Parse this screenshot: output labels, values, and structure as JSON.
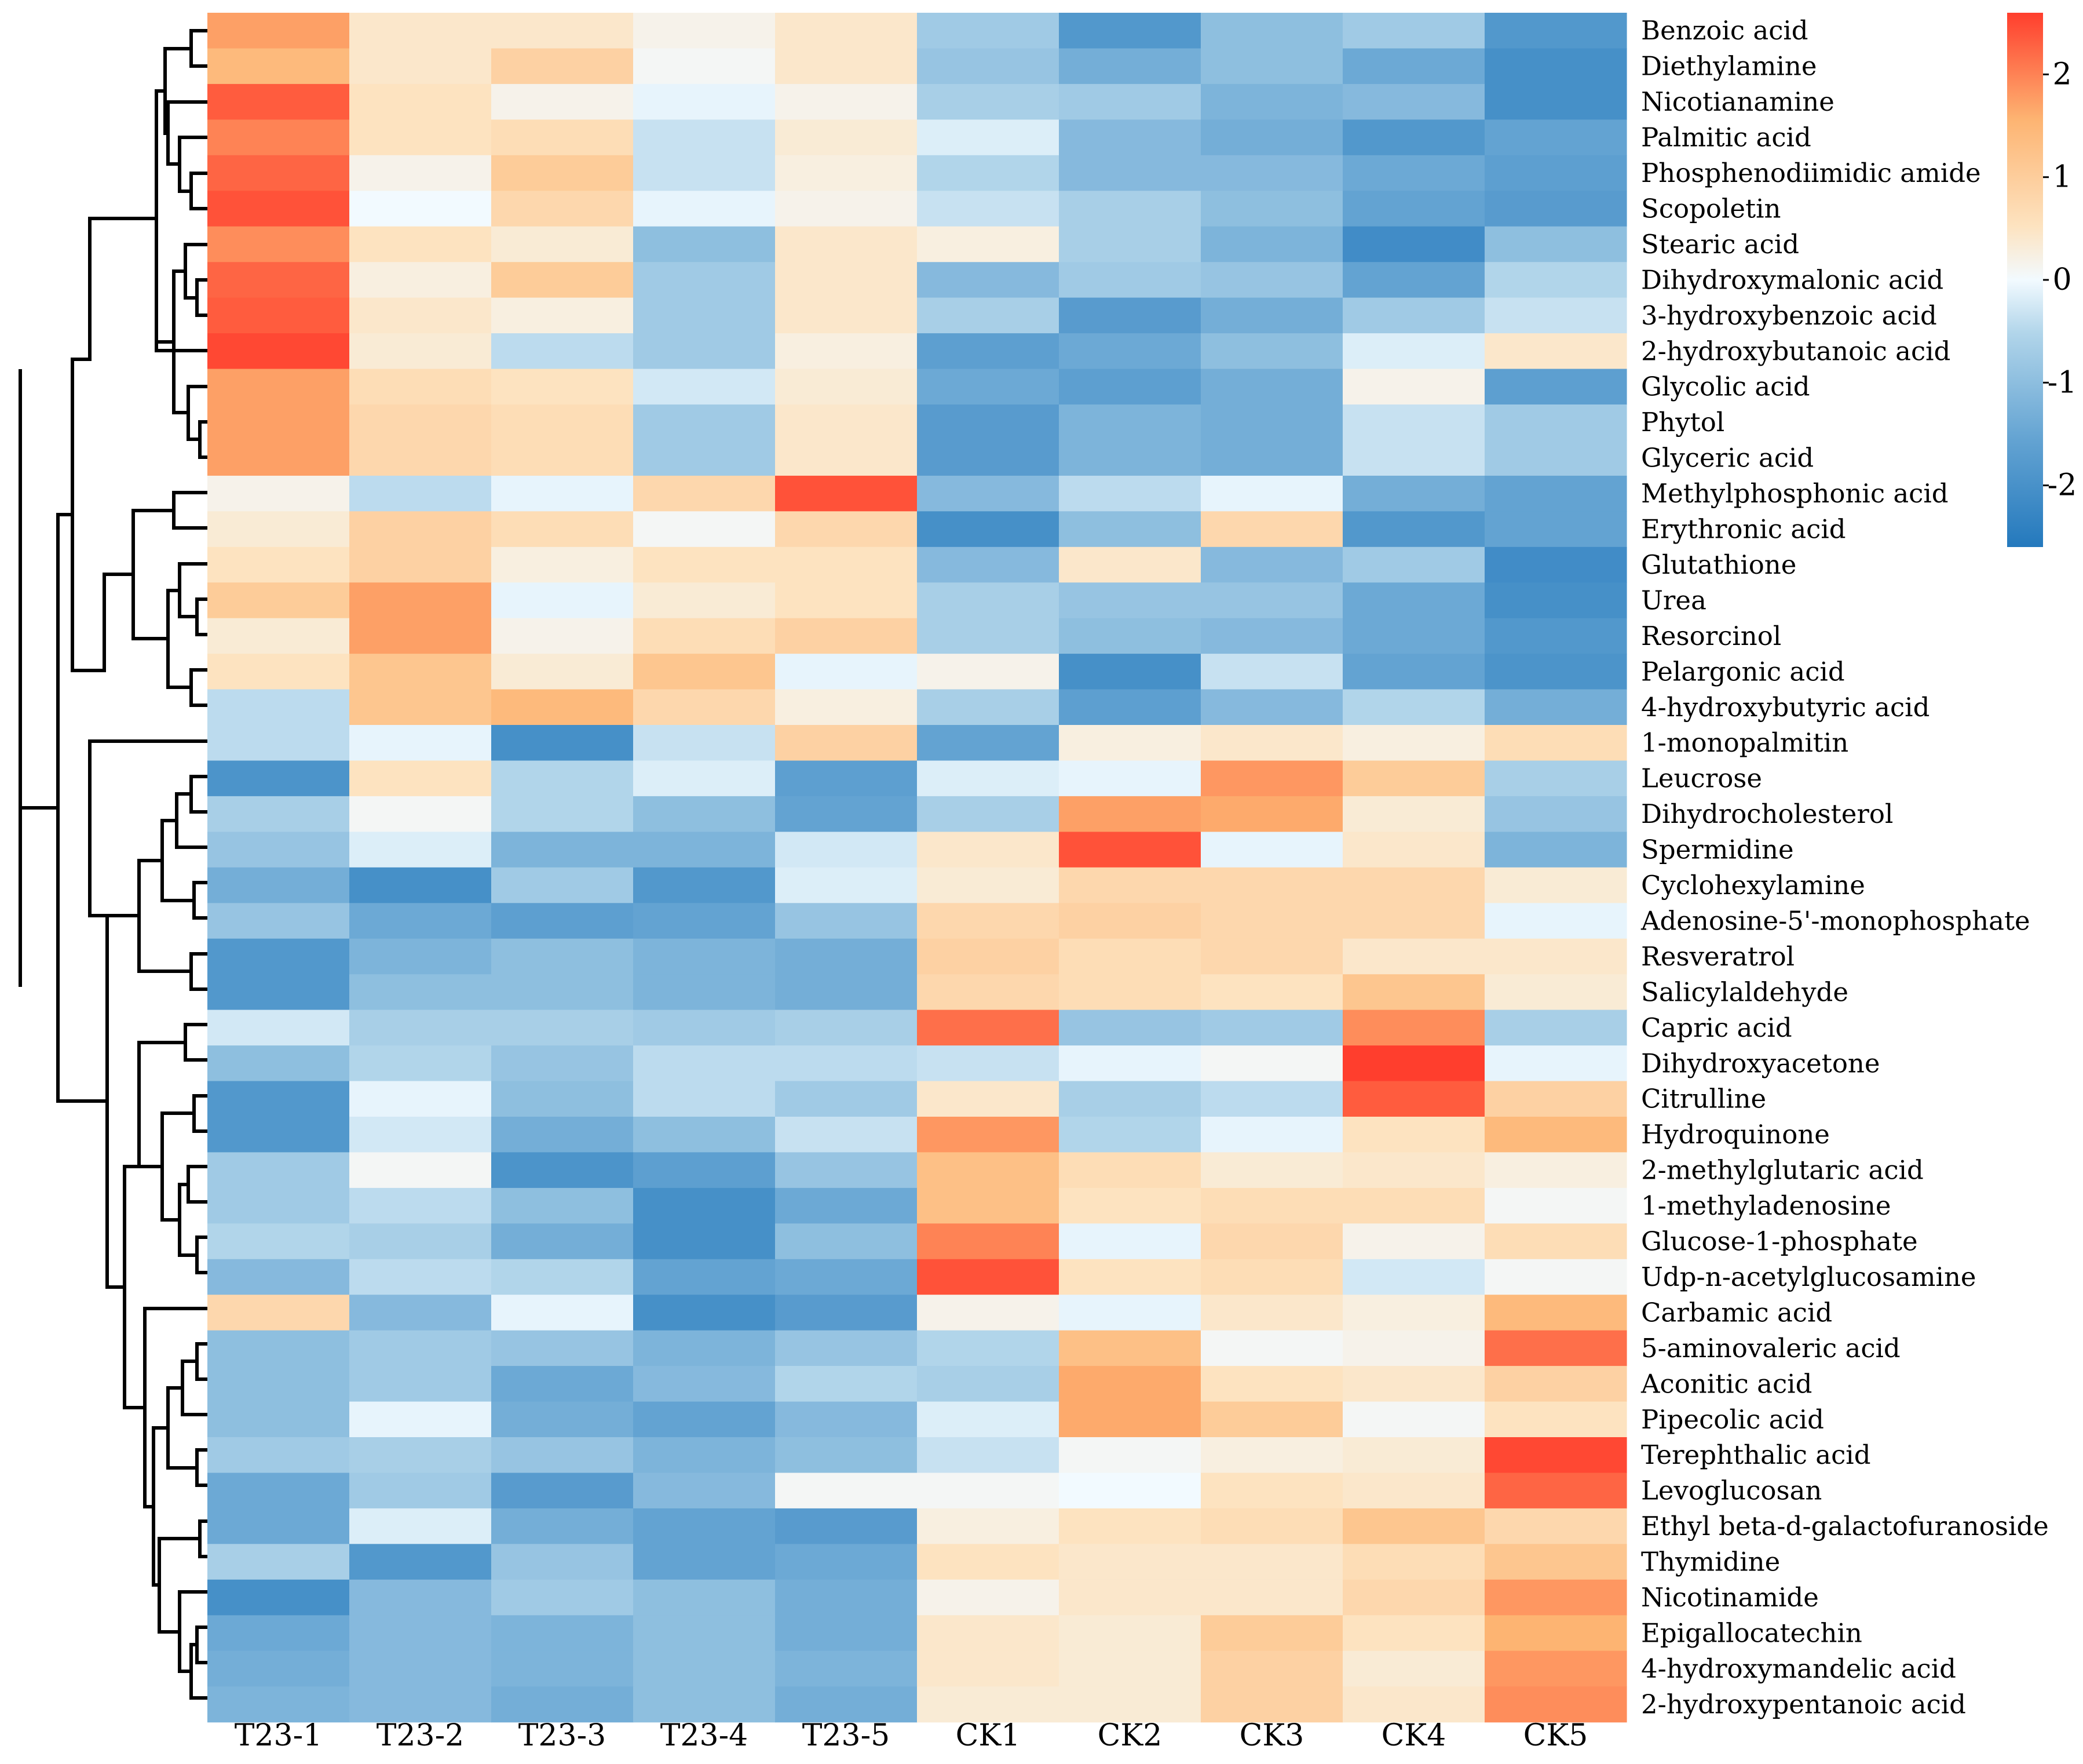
{
  "chart_data": {
    "type": "heatmap",
    "columns": [
      "T23-1",
      "T23-2",
      "T23-3",
      "T23-4",
      "T23-5",
      "CK1",
      "CK2",
      "CK3",
      "CK4",
      "CK5"
    ],
    "rows": [
      "Benzoic acid",
      "Diethylamine",
      "Nicotianamine",
      "Palmitic acid",
      "Phosphenodiimidic amide",
      "Scopoletin",
      "Stearic acid",
      "Dihydroxymalonic acid",
      "3-hydroxybenzoic acid",
      "2-hydroxybutanoic acid",
      "Glycolic acid",
      "Phytol",
      "Glyceric acid",
      "Methylphosphonic acid",
      "Erythronic acid",
      "Glutathione",
      "Urea",
      "Resorcinol",
      "Pelargonic acid",
      "4-hydroxybutyric acid",
      "1-monopalmitin",
      "Leucrose",
      "Dihydrocholesterol",
      "Spermidine",
      "Cyclohexylamine",
      "Adenosine-5'-monophosphate",
      "Resveratrol",
      "Salicylaldehyde",
      "Capric acid",
      "Dihydroxyacetone",
      "Citrulline",
      "Hydroquinone",
      "2-methylglutaric acid",
      "1-methyladenosine",
      "Glucose-1-phosphate",
      "Udp-n-acetylglucosamine",
      "Carbamic acid",
      "5-aminovaleric acid",
      "Aconitic acid",
      "Pipecolic acid",
      "Terephthalic acid",
      "Levoglucosan",
      "Ethyl beta-d-galactofuranoside",
      "Thymidine",
      "Nicotinamide",
      "Epigallocatechin",
      "4-hydroxymandelic acid",
      "2-hydroxypentanoic acid"
    ],
    "values": [
      [
        1.6,
        0.5,
        0.5,
        0.2,
        0.5,
        -0.8,
        -1.8,
        -1.0,
        -0.8,
        -1.8
      ],
      [
        1.3,
        0.5,
        0.9,
        0.1,
        0.5,
        -0.9,
        -1.3,
        -1.0,
        -1.4,
        -2.0
      ],
      [
        2.3,
        0.6,
        0.2,
        -0.1,
        0.2,
        -0.7,
        -0.8,
        -1.2,
        -1.1,
        -2.0
      ],
      [
        1.9,
        0.6,
        0.7,
        -0.4,
        0.4,
        -0.2,
        -1.1,
        -1.3,
        -1.8,
        -1.5
      ],
      [
        2.2,
        0.2,
        1.0,
        -0.4,
        0.3,
        -0.6,
        -1.1,
        -1.1,
        -1.4,
        -1.6
      ],
      [
        2.4,
        0.0,
        0.8,
        -0.1,
        0.2,
        -0.4,
        -0.7,
        -1.0,
        -1.5,
        -1.7
      ],
      [
        1.8,
        0.6,
        0.4,
        -1.0,
        0.5,
        0.3,
        -0.7,
        -1.2,
        -2.1,
        -1.0
      ],
      [
        2.2,
        0.3,
        1.0,
        -0.8,
        0.5,
        -1.1,
        -0.8,
        -0.9,
        -1.5,
        -0.6
      ],
      [
        2.3,
        0.5,
        0.3,
        -0.8,
        0.5,
        -0.7,
        -1.7,
        -1.3,
        -0.8,
        -0.4
      ],
      [
        2.5,
        0.4,
        -0.5,
        -0.8,
        0.3,
        -1.6,
        -1.4,
        -1.0,
        -0.2,
        0.5
      ],
      [
        1.6,
        0.7,
        0.6,
        -0.3,
        0.4,
        -1.4,
        -1.6,
        -1.3,
        0.2,
        -1.6
      ],
      [
        1.6,
        0.8,
        0.7,
        -0.8,
        0.5,
        -1.7,
        -1.2,
        -1.3,
        -0.4,
        -0.8
      ],
      [
        1.6,
        0.8,
        0.7,
        -0.8,
        0.5,
        -1.7,
        -1.2,
        -1.3,
        -0.4,
        -0.8
      ],
      [
        0.2,
        -0.5,
        -0.1,
        0.8,
        2.4,
        -1.1,
        -0.5,
        -0.1,
        -1.3,
        -1.5
      ],
      [
        0.4,
        0.9,
        0.7,
        0.1,
        0.8,
        -2.0,
        -1.0,
        0.8,
        -1.8,
        -1.5
      ],
      [
        0.6,
        0.9,
        0.3,
        0.6,
        0.6,
        -1.1,
        0.5,
        -1.1,
        -0.8,
        -2.1
      ],
      [
        1.0,
        1.6,
        -0.1,
        0.4,
        0.6,
        -0.7,
        -0.9,
        -0.9,
        -1.4,
        -2.0
      ],
      [
        0.4,
        1.6,
        0.2,
        0.7,
        0.9,
        -0.7,
        -1.0,
        -1.1,
        -1.4,
        -1.8
      ],
      [
        0.6,
        1.1,
        0.4,
        1.1,
        -0.1,
        0.2,
        -2.0,
        -0.4,
        -1.5,
        -1.9
      ],
      [
        -0.5,
        1.1,
        1.3,
        0.8,
        0.3,
        -0.7,
        -1.6,
        -1.1,
        -0.6,
        -1.3
      ],
      [
        -0.5,
        -0.1,
        -2.0,
        -0.4,
        0.9,
        -1.5,
        0.3,
        0.5,
        0.3,
        0.7
      ],
      [
        -1.9,
        0.6,
        -0.6,
        -0.2,
        -1.6,
        -0.2,
        -0.1,
        1.7,
        1.0,
        -0.7
      ],
      [
        -0.7,
        0.1,
        -0.6,
        -1.0,
        -1.5,
        -0.7,
        1.6,
        1.5,
        0.4,
        -0.9
      ],
      [
        -0.9,
        -0.2,
        -1.2,
        -1.2,
        -0.3,
        0.5,
        2.4,
        -0.1,
        0.5,
        -1.2
      ],
      [
        -1.3,
        -2.0,
        -0.8,
        -1.8,
        -0.2,
        0.4,
        0.8,
        0.8,
        0.8,
        0.4
      ],
      [
        -0.9,
        -1.4,
        -1.6,
        -1.5,
        -0.9,
        0.8,
        0.9,
        0.8,
        0.8,
        -0.1
      ],
      [
        -1.8,
        -1.2,
        -1.0,
        -1.2,
        -1.3,
        0.9,
        0.7,
        0.8,
        0.5,
        0.5
      ],
      [
        -1.8,
        -1.0,
        -1.0,
        -1.2,
        -1.3,
        0.8,
        0.7,
        0.6,
        1.1,
        0.4
      ],
      [
        -0.3,
        -0.7,
        -0.7,
        -0.8,
        -0.7,
        2.1,
        -0.9,
        -0.8,
        1.8,
        -0.7
      ],
      [
        -1.0,
        -0.6,
        -0.9,
        -0.5,
        -0.5,
        -0.4,
        -0.1,
        0.1,
        2.6,
        -0.1
      ],
      [
        -1.8,
        -0.1,
        -1.0,
        -0.5,
        -0.8,
        0.5,
        -0.7,
        -0.5,
        2.3,
        0.9
      ],
      [
        -1.8,
        -0.3,
        -1.3,
        -1.0,
        -0.4,
        1.7,
        -0.6,
        -0.1,
        0.6,
        1.3
      ],
      [
        -0.8,
        0.1,
        -1.9,
        -1.6,
        -0.9,
        1.2,
        0.7,
        0.4,
        0.5,
        0.3
      ],
      [
        -0.8,
        -0.5,
        -1.0,
        -2.0,
        -1.4,
        1.2,
        0.6,
        0.7,
        0.7,
        0.1
      ],
      [
        -0.6,
        -0.7,
        -1.3,
        -2.0,
        -1.0,
        1.9,
        -0.1,
        0.8,
        0.2,
        0.7
      ],
      [
        -1.1,
        -0.5,
        -0.6,
        -1.5,
        -1.4,
        2.4,
        0.6,
        0.7,
        -0.3,
        0.1
      ],
      [
        0.8,
        -1.1,
        -0.1,
        -2.0,
        -1.7,
        0.2,
        -0.1,
        0.5,
        0.3,
        1.3
      ],
      [
        -1.0,
        -0.8,
        -0.9,
        -1.2,
        -0.9,
        -0.6,
        1.2,
        0.1,
        0.2,
        2.1
      ],
      [
        -1.0,
        -0.8,
        -1.4,
        -1.1,
        -0.6,
        -0.7,
        1.5,
        0.6,
        0.5,
        0.9
      ],
      [
        -1.0,
        -0.1,
        -1.3,
        -1.5,
        -1.1,
        -0.2,
        1.5,
        1.0,
        0.1,
        0.6
      ],
      [
        -0.8,
        -0.7,
        -0.9,
        -1.2,
        -1.0,
        -0.4,
        0.1,
        0.3,
        0.4,
        2.5
      ],
      [
        -1.4,
        -0.8,
        -1.7,
        -1.1,
        0.1,
        0.1,
        0.0,
        0.6,
        0.5,
        2.2
      ],
      [
        -1.4,
        -0.2,
        -1.3,
        -1.5,
        -1.7,
        0.3,
        0.6,
        0.7,
        1.1,
        0.8
      ],
      [
        -0.7,
        -1.8,
        -0.9,
        -1.5,
        -1.4,
        0.6,
        0.5,
        0.5,
        0.7,
        1.1
      ],
      [
        -2.0,
        -1.1,
        -0.8,
        -1.0,
        -1.3,
        0.2,
        0.5,
        0.5,
        0.8,
        1.7
      ],
      [
        -1.4,
        -1.1,
        -1.2,
        -1.0,
        -1.3,
        0.5,
        0.4,
        1.0,
        0.6,
        1.4
      ],
      [
        -1.3,
        -1.1,
        -1.2,
        -1.0,
        -1.2,
        0.5,
        0.4,
        0.9,
        0.4,
        1.7
      ],
      [
        -1.2,
        -1.1,
        -1.3,
        -1.0,
        -1.3,
        0.4,
        0.4,
        0.9,
        0.5,
        1.8
      ]
    ],
    "color_scale": {
      "min": -2.6,
      "max": 2.6,
      "low_color": "#2479bd",
      "mid_color": "#f2faff",
      "high_color": "#ff3e2d"
    },
    "legend": {
      "ticks": [
        2,
        1,
        0,
        -1,
        -2
      ],
      "tick_labels": [
        "2",
        "1",
        "0",
        "-1",
        "-2"
      ],
      "placement": "top-right"
    },
    "dendrogram": "rows",
    "title": "",
    "xlabel": "",
    "ylabel": ""
  }
}
